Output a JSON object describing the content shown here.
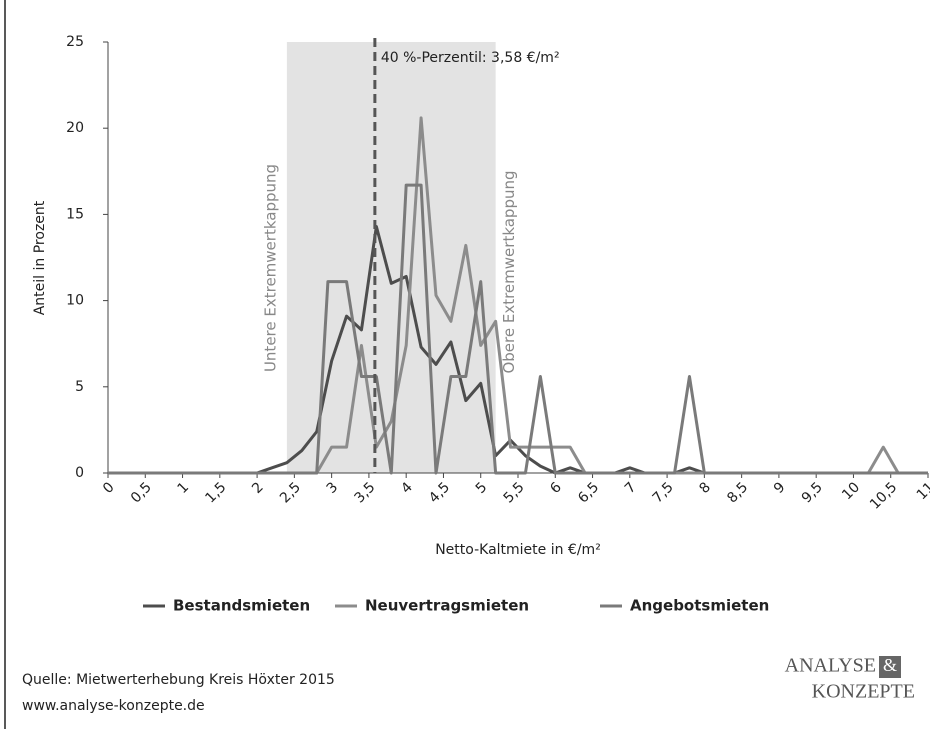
{
  "chart_data": {
    "type": "line",
    "y_label": "Anteil in Prozent",
    "x_label": "Netto-Kaltmiete in €/m²",
    "xlim": [
      0,
      11
    ],
    "ylim": [
      0,
      25
    ],
    "xticks": [
      0,
      {
        "value": 0.5,
        "label": "0,5"
      },
      1,
      {
        "value": 1.5,
        "label": "1,5"
      },
      2,
      {
        "value": 2.5,
        "label": "2,5"
      },
      3,
      {
        "value": 3.5,
        "label": "3,5"
      },
      4,
      {
        "value": 4.5,
        "label": "4,5"
      },
      5,
      {
        "value": 5.5,
        "label": "5,5"
      },
      6,
      {
        "value": 6.5,
        "label": "6,5"
      },
      7,
      {
        "value": 7.5,
        "label": "7,5"
      },
      8,
      {
        "value": 8.5,
        "label": "8,5"
      },
      9,
      {
        "value": 9.5,
        "label": "9,5"
      },
      10,
      {
        "value": 10.5,
        "label": "10,5"
      },
      11
    ],
    "yticks": [
      0,
      5,
      10,
      15,
      20,
      25
    ],
    "band": {
      "range": [
        2.4,
        5.2
      ],
      "color": "#e3e3e3",
      "lower_label": "Untere Extremwertkappung",
      "upper_label": "Obere Extremwertkappung"
    },
    "percentile": {
      "value": 3.58,
      "label": "40 %-Perzentil: 3,58 €/m²"
    },
    "series": [
      {
        "name": "Bestandsmieten",
        "color": "#4d4d4d",
        "x": [
          0,
          2,
          2.2,
          2.4,
          2.6,
          2.8,
          3.0,
          3.2,
          3.4,
          3.6,
          3.8,
          4.0,
          4.2,
          4.4,
          4.6,
          4.8,
          5.0,
          5.2,
          5.4,
          5.6,
          5.8,
          6.0,
          6.2,
          6.4,
          6.8,
          7.0,
          7.2,
          7.6,
          7.8,
          8.0,
          11
        ],
        "values": [
          0,
          0,
          0.3,
          0.6,
          1.3,
          2.4,
          6.5,
          9.1,
          8.3,
          14.3,
          11,
          11.4,
          7.3,
          6.3,
          7.6,
          4.2,
          5.2,
          1,
          1.9,
          1,
          0.4,
          0,
          0.3,
          0,
          0,
          0.3,
          0,
          0,
          0.3,
          0,
          0
        ]
      },
      {
        "name": "Neuvertragsmieten",
        "color": "#8c8c8c",
        "x": [
          0,
          2.8,
          3.0,
          3.2,
          3.4,
          3.6,
          3.8,
          4.0,
          4.2,
          4.4,
          4.6,
          4.8,
          5.0,
          5.2,
          5.4,
          5.6,
          5.8,
          6.0,
          6.2,
          6.4,
          10.2,
          10.4,
          10.6,
          11
        ],
        "values": [
          0,
          0,
          1.5,
          1.5,
          7.4,
          1.5,
          3,
          7.4,
          20.6,
          10.3,
          8.8,
          13.2,
          7.4,
          8.8,
          1.5,
          1.5,
          1.5,
          1.5,
          1.5,
          0,
          0,
          1.5,
          0,
          0
        ]
      },
      {
        "name": "Angebotsmieten",
        "color": "#7a7a7a",
        "x": [
          0,
          2.8,
          2.95,
          3.2,
          3.4,
          3.6,
          3.8,
          4.0,
          4.2,
          4.4,
          4.6,
          4.8,
          5.0,
          5.2,
          5.6,
          5.8,
          6.0,
          7.6,
          7.8,
          8.0,
          11
        ],
        "values": [
          0,
          0,
          11.1,
          11.1,
          5.6,
          5.6,
          0,
          16.7,
          16.7,
          0,
          5.6,
          5.6,
          11.1,
          0,
          0,
          5.6,
          0,
          0,
          5.6,
          0,
          0
        ]
      }
    ],
    "source": "Quelle: Mietwerterhebung Kreis Höxter 2015",
    "website": "www.analyse-konzepte.de",
    "logo": [
      "ANALYSE",
      "&",
      "KONZEPTE"
    ]
  }
}
